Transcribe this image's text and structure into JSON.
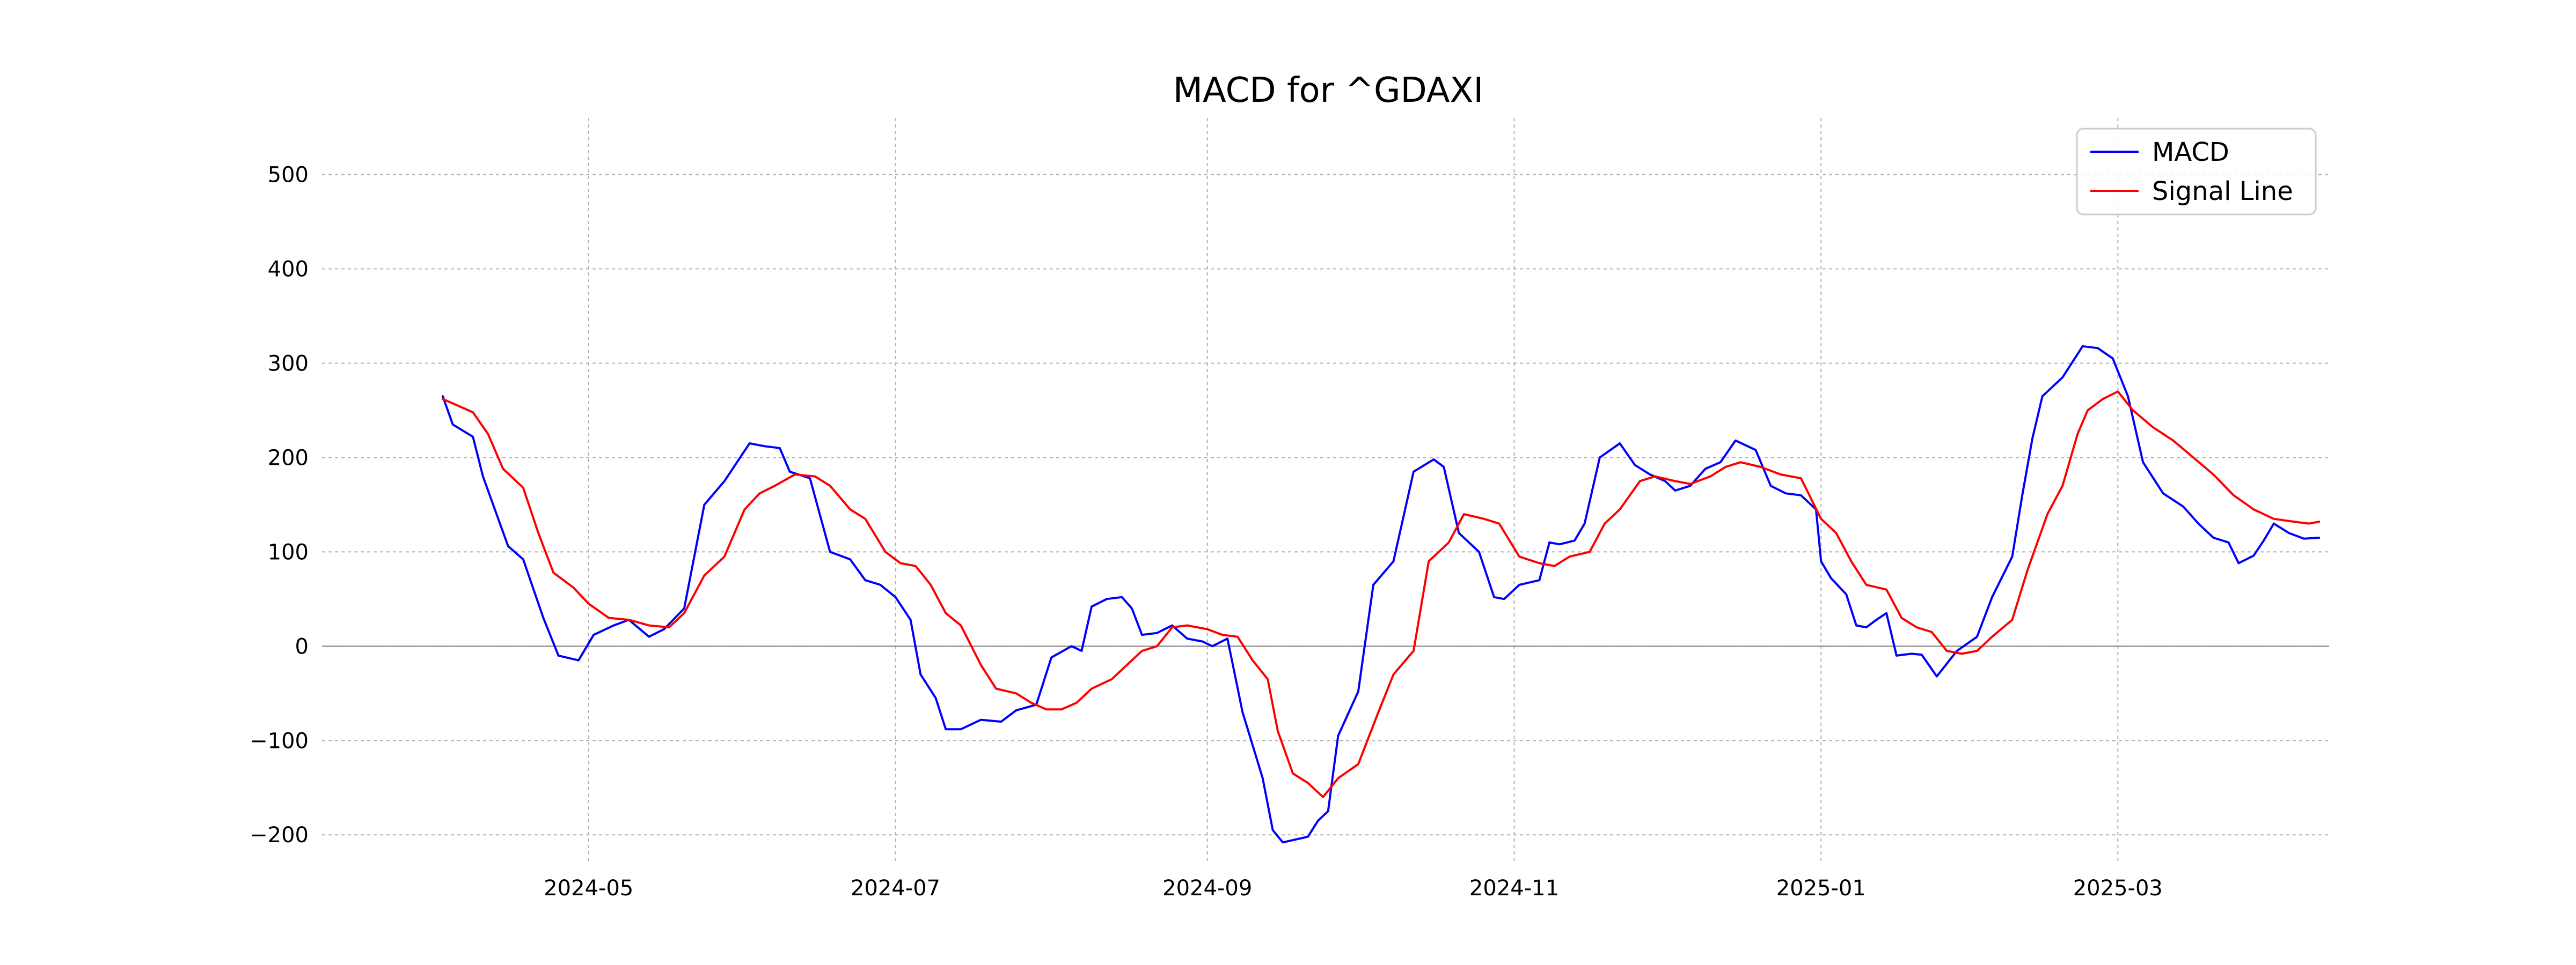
{
  "chart_data": {
    "type": "line",
    "title": "MACD for ^GDAXI",
    "xlabel": "",
    "ylabel": "",
    "ylim": [
      -230,
      560
    ],
    "xlim": [
      "2024-03-09",
      "2025-04-12"
    ],
    "yticks": [
      -200,
      -100,
      0,
      100,
      200,
      300,
      400,
      500
    ],
    "ytick_labels": [
      "−200",
      "−100",
      "0",
      "100",
      "200",
      "300",
      "400",
      "500"
    ],
    "xticks": [
      "2024-05-01",
      "2024-07-01",
      "2024-09-01",
      "2024-11-01",
      "2025-01-01",
      "2025-03-01"
    ],
    "xtick_labels": [
      "2024-05",
      "2024-07",
      "2024-09",
      "2024-11",
      "2025-01",
      "2025-03"
    ],
    "grid": true,
    "zero_line": true,
    "legend_position": "top-right",
    "series": [
      {
        "name": "MACD",
        "color": "#0000ff",
        "points": [
          [
            "2024-04-02",
            265
          ],
          [
            "2024-04-04",
            235
          ],
          [
            "2024-04-08",
            222
          ],
          [
            "2024-04-10",
            180
          ],
          [
            "2024-04-15",
            106
          ],
          [
            "2024-04-18",
            92
          ],
          [
            "2024-04-22",
            30
          ],
          [
            "2024-04-25",
            -10
          ],
          [
            "2024-04-29",
            -15
          ],
          [
            "2024-05-02",
            12
          ],
          [
            "2024-05-06",
            22
          ],
          [
            "2024-05-09",
            28
          ],
          [
            "2024-05-13",
            10
          ],
          [
            "2024-05-16",
            18
          ],
          [
            "2024-05-20",
            40
          ],
          [
            "2024-05-24",
            150
          ],
          [
            "2024-05-28",
            175
          ],
          [
            "2024-06-02",
            215
          ],
          [
            "2024-06-05",
            212
          ],
          [
            "2024-06-08",
            210
          ],
          [
            "2024-06-10",
            185
          ],
          [
            "2024-06-14",
            178
          ],
          [
            "2024-06-18",
            100
          ],
          [
            "2024-06-22",
            92
          ],
          [
            "2024-06-25",
            70
          ],
          [
            "2024-06-28",
            65
          ],
          [
            "2024-07-01",
            52
          ],
          [
            "2024-07-04",
            28
          ],
          [
            "2024-07-06",
            -30
          ],
          [
            "2024-07-09",
            -55
          ],
          [
            "2024-07-11",
            -88
          ],
          [
            "2024-07-14",
            -88
          ],
          [
            "2024-07-18",
            -78
          ],
          [
            "2024-07-22",
            -80
          ],
          [
            "2024-07-25",
            -68
          ],
          [
            "2024-07-29",
            -62
          ],
          [
            "2024-08-01",
            -12
          ],
          [
            "2024-08-05",
            0
          ],
          [
            "2024-08-07",
            -5
          ],
          [
            "2024-08-09",
            42
          ],
          [
            "2024-08-12",
            50
          ],
          [
            "2024-08-15",
            52
          ],
          [
            "2024-08-17",
            40
          ],
          [
            "2024-08-19",
            12
          ],
          [
            "2024-08-22",
            14
          ],
          [
            "2024-08-25",
            22
          ],
          [
            "2024-08-28",
            8
          ],
          [
            "2024-08-31",
            5
          ],
          [
            "2024-09-02",
            0
          ],
          [
            "2024-09-05",
            8
          ],
          [
            "2024-09-08",
            -70
          ],
          [
            "2024-09-10",
            -105
          ],
          [
            "2024-09-12",
            -140
          ],
          [
            "2024-09-14",
            -195
          ],
          [
            "2024-09-16",
            -208
          ],
          [
            "2024-09-21",
            -202
          ],
          [
            "2024-09-23",
            -185
          ],
          [
            "2024-09-25",
            -175
          ],
          [
            "2024-09-27",
            -95
          ],
          [
            "2024-10-01",
            -48
          ],
          [
            "2024-10-04",
            65
          ],
          [
            "2024-10-08",
            90
          ],
          [
            "2024-10-12",
            185
          ],
          [
            "2024-10-16",
            198
          ],
          [
            "2024-10-18",
            190
          ],
          [
            "2024-10-21",
            120
          ],
          [
            "2024-10-25",
            100
          ],
          [
            "2024-10-28",
            52
          ],
          [
            "2024-10-30",
            50
          ],
          [
            "2024-11-02",
            65
          ],
          [
            "2024-11-06",
            70
          ],
          [
            "2024-11-08",
            110
          ],
          [
            "2024-11-10",
            108
          ],
          [
            "2024-11-13",
            112
          ],
          [
            "2024-11-15",
            130
          ],
          [
            "2024-11-18",
            200
          ],
          [
            "2024-11-22",
            215
          ],
          [
            "2024-11-25",
            192
          ],
          [
            "2024-11-28",
            182
          ],
          [
            "2024-12-01",
            175
          ],
          [
            "2024-12-03",
            165
          ],
          [
            "2024-12-06",
            170
          ],
          [
            "2024-12-09",
            188
          ],
          [
            "2024-12-12",
            195
          ],
          [
            "2024-12-15",
            218
          ],
          [
            "2024-12-19",
            208
          ],
          [
            "2024-12-22",
            170
          ],
          [
            "2024-12-25",
            162
          ],
          [
            "2024-12-28",
            160
          ],
          [
            "2024-12-31",
            145
          ],
          [
            "2025-01-01",
            90
          ],
          [
            "2025-01-03",
            72
          ],
          [
            "2025-01-06",
            55
          ],
          [
            "2025-01-08",
            22
          ],
          [
            "2025-01-10",
            20
          ],
          [
            "2025-01-12",
            28
          ],
          [
            "2025-01-14",
            35
          ],
          [
            "2025-01-16",
            -10
          ],
          [
            "2025-01-19",
            -8
          ],
          [
            "2025-01-21",
            -9
          ],
          [
            "2025-01-24",
            -32
          ],
          [
            "2025-01-28",
            -5
          ],
          [
            "2025-02-01",
            10
          ],
          [
            "2025-02-04",
            52
          ],
          [
            "2025-02-08",
            95
          ],
          [
            "2025-02-10",
            160
          ],
          [
            "2025-02-12",
            220
          ],
          [
            "2025-02-14",
            265
          ],
          [
            "2025-02-18",
            285
          ],
          [
            "2025-02-22",
            318
          ],
          [
            "2025-02-25",
            316
          ],
          [
            "2025-02-28",
            305
          ],
          [
            "2025-03-03",
            265
          ],
          [
            "2025-03-06",
            195
          ],
          [
            "2025-03-10",
            162
          ],
          [
            "2025-03-14",
            148
          ],
          [
            "2025-03-17",
            130
          ],
          [
            "2025-03-20",
            115
          ],
          [
            "2025-03-23",
            110
          ],
          [
            "2025-03-25",
            88
          ],
          [
            "2025-03-28",
            96
          ],
          [
            "2025-03-30",
            112
          ],
          [
            "2025-04-01",
            130
          ],
          [
            "2025-04-04",
            120
          ],
          [
            "2025-04-07",
            114
          ],
          [
            "2025-04-10",
            115
          ]
        ]
      },
      {
        "name": "Signal Line",
        "color": "#ff0000",
        "points": [
          [
            "2024-04-02",
            262
          ],
          [
            "2024-04-05",
            255
          ],
          [
            "2024-04-08",
            248
          ],
          [
            "2024-04-11",
            225
          ],
          [
            "2024-04-14",
            188
          ],
          [
            "2024-04-18",
            168
          ],
          [
            "2024-04-21",
            120
          ],
          [
            "2024-04-24",
            78
          ],
          [
            "2024-04-28",
            62
          ],
          [
            "2024-05-01",
            45
          ],
          [
            "2024-05-05",
            30
          ],
          [
            "2024-05-09",
            28
          ],
          [
            "2024-05-13",
            22
          ],
          [
            "2024-05-17",
            20
          ],
          [
            "2024-05-20",
            35
          ],
          [
            "2024-05-24",
            75
          ],
          [
            "2024-05-28",
            95
          ],
          [
            "2024-06-01",
            145
          ],
          [
            "2024-06-04",
            162
          ],
          [
            "2024-06-07",
            170
          ],
          [
            "2024-06-11",
            182
          ],
          [
            "2024-06-15",
            180
          ],
          [
            "2024-06-18",
            170
          ],
          [
            "2024-06-22",
            145
          ],
          [
            "2024-06-25",
            135
          ],
          [
            "2024-06-29",
            100
          ],
          [
            "2024-07-02",
            88
          ],
          [
            "2024-07-05",
            85
          ],
          [
            "2024-07-08",
            65
          ],
          [
            "2024-07-11",
            35
          ],
          [
            "2024-07-14",
            22
          ],
          [
            "2024-07-18",
            -20
          ],
          [
            "2024-07-21",
            -45
          ],
          [
            "2024-07-25",
            -50
          ],
          [
            "2024-07-28",
            -60
          ],
          [
            "2024-07-31",
            -67
          ],
          [
            "2024-08-03",
            -67
          ],
          [
            "2024-08-06",
            -60
          ],
          [
            "2024-08-09",
            -45
          ],
          [
            "2024-08-13",
            -35
          ],
          [
            "2024-08-16",
            -20
          ],
          [
            "2024-08-19",
            -5
          ],
          [
            "2024-08-22",
            0
          ],
          [
            "2024-08-25",
            20
          ],
          [
            "2024-08-28",
            22
          ],
          [
            "2024-09-01",
            18
          ],
          [
            "2024-09-04",
            12
          ],
          [
            "2024-09-07",
            10
          ],
          [
            "2024-09-10",
            -15
          ],
          [
            "2024-09-13",
            -35
          ],
          [
            "2024-09-15",
            -90
          ],
          [
            "2024-09-18",
            -135
          ],
          [
            "2024-09-21",
            -145
          ],
          [
            "2024-09-24",
            -160
          ],
          [
            "2024-09-27",
            -140
          ],
          [
            "2024-10-01",
            -125
          ],
          [
            "2024-10-05",
            -70
          ],
          [
            "2024-10-08",
            -30
          ],
          [
            "2024-10-12",
            -5
          ],
          [
            "2024-10-15",
            90
          ],
          [
            "2024-10-19",
            110
          ],
          [
            "2024-10-22",
            140
          ],
          [
            "2024-10-26",
            135
          ],
          [
            "2024-10-29",
            130
          ],
          [
            "2024-11-02",
            95
          ],
          [
            "2024-11-06",
            88
          ],
          [
            "2024-11-09",
            85
          ],
          [
            "2024-11-12",
            95
          ],
          [
            "2024-11-16",
            100
          ],
          [
            "2024-11-19",
            130
          ],
          [
            "2024-11-22",
            145
          ],
          [
            "2024-11-26",
            175
          ],
          [
            "2024-11-29",
            180
          ],
          [
            "2024-12-03",
            175
          ],
          [
            "2024-12-06",
            172
          ],
          [
            "2024-12-10",
            180
          ],
          [
            "2024-12-13",
            190
          ],
          [
            "2024-12-16",
            195
          ],
          [
            "2024-12-20",
            190
          ],
          [
            "2024-12-24",
            182
          ],
          [
            "2024-12-28",
            178
          ],
          [
            "2025-01-01",
            135
          ],
          [
            "2025-01-04",
            120
          ],
          [
            "2025-01-07",
            90
          ],
          [
            "2025-01-10",
            65
          ],
          [
            "2025-01-14",
            60
          ],
          [
            "2025-01-17",
            30
          ],
          [
            "2025-01-20",
            20
          ],
          [
            "2025-01-23",
            15
          ],
          [
            "2025-01-26",
            -5
          ],
          [
            "2025-01-29",
            -8
          ],
          [
            "2025-02-01",
            -5
          ],
          [
            "2025-02-04",
            10
          ],
          [
            "2025-02-08",
            28
          ],
          [
            "2025-02-11",
            80
          ],
          [
            "2025-02-15",
            140
          ],
          [
            "2025-02-18",
            170
          ],
          [
            "2025-02-21",
            225
          ],
          [
            "2025-02-23",
            250
          ],
          [
            "2025-02-26",
            262
          ],
          [
            "2025-03-01",
            270
          ],
          [
            "2025-03-04",
            250
          ],
          [
            "2025-03-08",
            232
          ],
          [
            "2025-03-12",
            218
          ],
          [
            "2025-03-16",
            200
          ],
          [
            "2025-03-20",
            182
          ],
          [
            "2025-03-24",
            160
          ],
          [
            "2025-03-28",
            145
          ],
          [
            "2025-04-01",
            135
          ],
          [
            "2025-04-05",
            132
          ],
          [
            "2025-04-08",
            130
          ],
          [
            "2025-04-10",
            132
          ]
        ]
      }
    ]
  }
}
